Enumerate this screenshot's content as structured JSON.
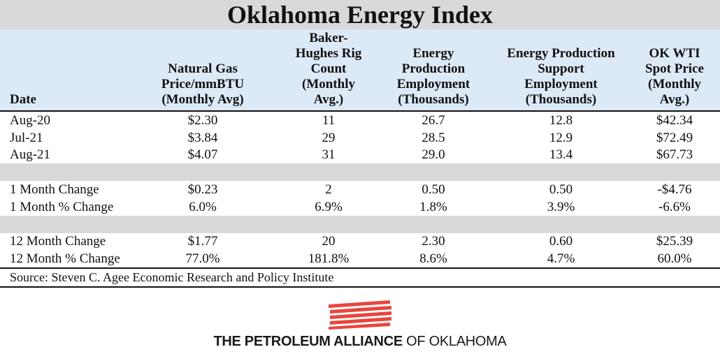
{
  "title": "Oklahoma Energy Index",
  "headers": {
    "date": "Date",
    "col1": [
      "Natural Gas",
      "Price/mmBTU",
      "(Monthly Avg)"
    ],
    "col2": [
      "Baker-",
      "Hughes Rig",
      "Count",
      "(Monthly",
      "Avg.)"
    ],
    "col3": [
      "Energy",
      "Production",
      "Employment",
      "(Thousands)"
    ],
    "col4": [
      "Energy Production",
      "Support",
      "Employment",
      "(Thousands)"
    ],
    "col5": [
      "OK WTI",
      "Spot Price",
      "(Monthly",
      "Avg.)"
    ]
  },
  "rows": [
    {
      "label": "Aug-20",
      "values": [
        "$2.30",
        "11",
        "26.7",
        "12.8",
        "$42.34"
      ]
    },
    {
      "label": "Jul-21",
      "values": [
        "$3.84",
        "29",
        "28.5",
        "12.9",
        "$72.49"
      ]
    },
    {
      "label": "Aug-21",
      "values": [
        "$4.07",
        "31",
        "29.0",
        "13.4",
        "$67.73"
      ]
    },
    {
      "label": "1 Month Change",
      "values": [
        "$0.23",
        "2",
        "0.50",
        "0.50",
        "-$4.76"
      ]
    },
    {
      "label": "1 Month % Change",
      "values": [
        "6.0%",
        "6.9%",
        "1.8%",
        "3.9%",
        "-6.6%"
      ]
    },
    {
      "label": "12 Month Change",
      "values": [
        "$1.77",
        "20",
        "2.30",
        "0.60",
        "$25.39"
      ]
    },
    {
      "label": "12 Month % Change",
      "values": [
        "77.0%",
        "181.8%",
        "8.6%",
        "4.7%",
        "60.0%"
      ]
    }
  ],
  "source": "Source: Steven C. Agee Economic Research and Policy Institute",
  "logo": {
    "icon": "stripes-flag-icon",
    "text_bold": "THE PETROLEUM ALLIANCE",
    "text_light": " OF OKLAHOMA",
    "color": "#e8463e"
  }
}
